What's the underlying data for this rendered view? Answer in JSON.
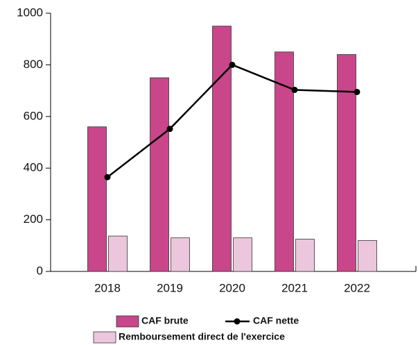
{
  "chart_data": {
    "type": "bar",
    "categories": [
      "2018",
      "2019",
      "2020",
      "2021",
      "2022"
    ],
    "series": [
      {
        "name": "CAF brute",
        "type": "bar",
        "color": "#c9468a",
        "values": [
          560,
          750,
          950,
          850,
          840
        ]
      },
      {
        "name": "CAF nette",
        "type": "line",
        "color": "#000000",
        "values": [
          365,
          552,
          800,
          703,
          695
        ]
      },
      {
        "name": "Remboursement direct de l'exercice",
        "type": "bar",
        "color": "#ebc6dc",
        "values": [
          137,
          130,
          130,
          125,
          120
        ]
      }
    ],
    "ylim": [
      0,
      1000
    ],
    "yticks": [
      0,
      200,
      400,
      600,
      800,
      1000
    ]
  }
}
